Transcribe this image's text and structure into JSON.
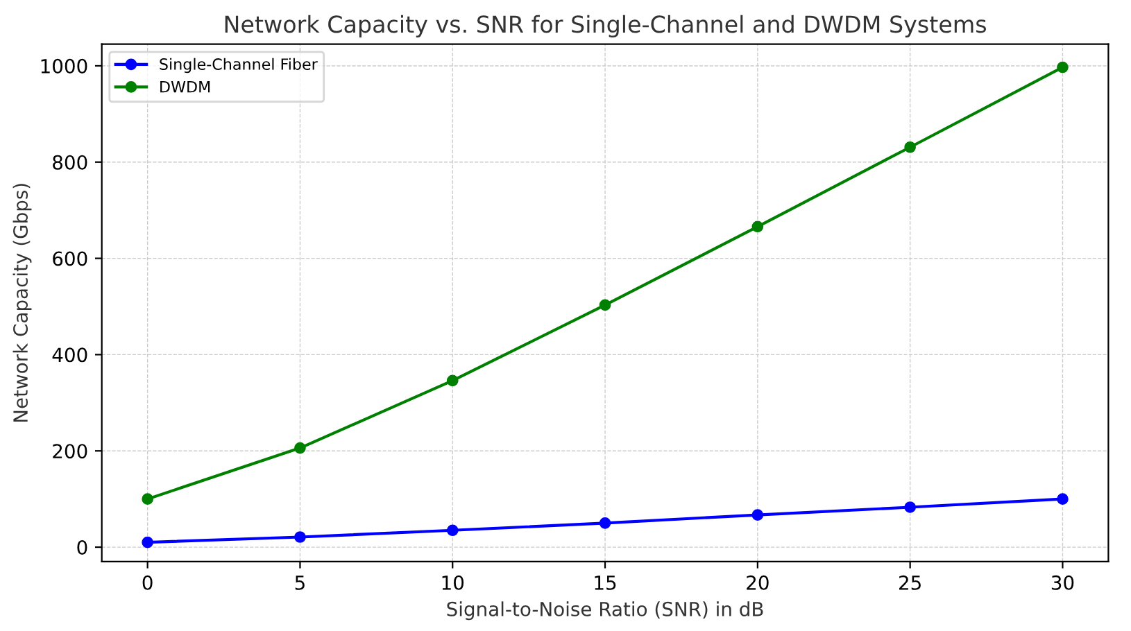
{
  "chart_data": {
    "type": "line",
    "title": "Network Capacity vs. SNR for Single-Channel and DWDM Systems",
    "xlabel": "Signal-to-Noise Ratio (SNR) in dB",
    "ylabel": "Network Capacity (Gbps)",
    "x": [
      0,
      5,
      10,
      15,
      20,
      25,
      30
    ],
    "series": [
      {
        "name": "Single-Channel Fiber",
        "color": "#0000ff",
        "values": [
          10,
          21,
          35,
          50,
          67,
          83,
          100
        ]
      },
      {
        "name": "DWDM",
        "color": "#008000",
        "values": [
          100,
          206,
          346,
          503,
          666,
          831,
          997
        ]
      }
    ],
    "xlim": [
      -1.5,
      31.5
    ],
    "ylim": [
      -30,
      1045
    ],
    "xticks": [
      0,
      5,
      10,
      15,
      20,
      25,
      30
    ],
    "yticks": [
      0,
      200,
      400,
      600,
      800,
      1000
    ],
    "grid": true,
    "legend": "top left",
    "marker": "circle",
    "line_style": "solid"
  }
}
